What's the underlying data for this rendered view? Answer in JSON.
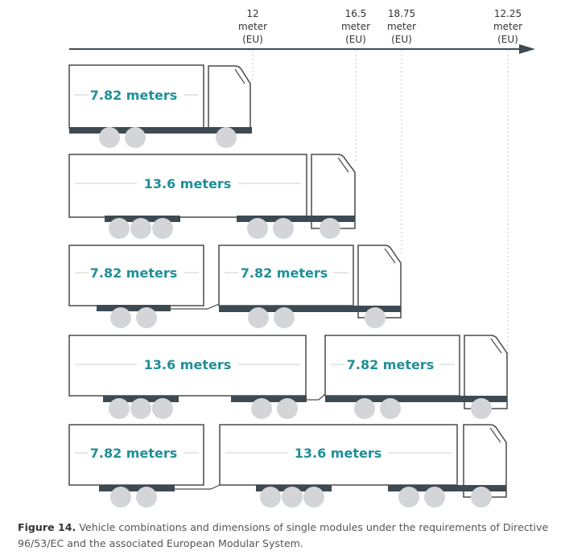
{
  "axis": {
    "markers": [
      {
        "value": "12",
        "unit": "meter",
        "region": "(EU)"
      },
      {
        "value": "16.5",
        "unit": "meter",
        "region": "(EU)"
      },
      {
        "value": "18.75",
        "unit": "meter",
        "region": "(EU)"
      },
      {
        "value": "12.25",
        "unit": "meter",
        "region": "(EU)"
      }
    ]
  },
  "vehicles": [
    {
      "modules": [
        "7.82 meters"
      ]
    },
    {
      "modules": [
        "13.6 meters"
      ]
    },
    {
      "modules": [
        "7.82 meters",
        "7.82 meters"
      ]
    },
    {
      "modules": [
        "13.6 meters",
        "7.82 meters"
      ]
    },
    {
      "modules": [
        "7.82 meters",
        "13.6 meters"
      ]
    }
  ],
  "caption": {
    "label": "Figure 14.",
    "text": "Vehicle combinations and dimensions of single modules under the requirements of Directive 96/53/EC and the associated European Modular System."
  },
  "colors": {
    "outline": "#4a4a4a",
    "chassis": "#3d4a52",
    "wheel": "#d3d5d8",
    "label": "#1f8f98",
    "guide": "#c8c8c8"
  }
}
